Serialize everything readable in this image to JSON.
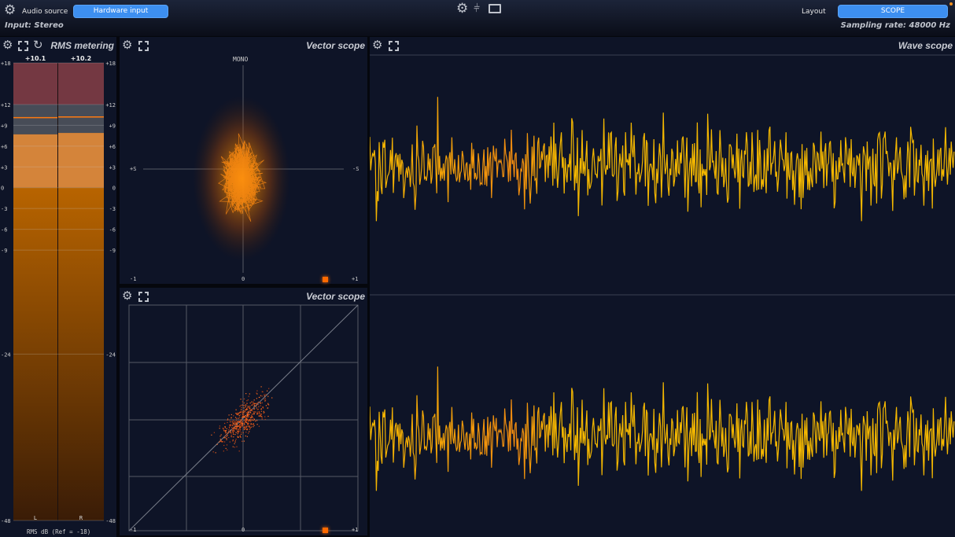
{
  "topbar": {
    "audio_source_label": "Audio source",
    "audio_source_value": "Hardware input",
    "input_info": "Input: Stereo",
    "layout_label": "Layout",
    "layout_value": "SCOPE",
    "sampling_rate": "Sampling rate: 48000 Hz",
    "center_icons": [
      "gear-icon",
      "mixer-sliders-icon",
      "scope-view-icon"
    ]
  },
  "rms": {
    "title": "RMS metering",
    "footer": "RMS dB (Ref = -18)",
    "scale": [
      "+18",
      "+12",
      "+9",
      "+6",
      "+3",
      "0",
      "-3",
      "-6",
      "-9",
      "-24",
      "-48"
    ],
    "channels": [
      {
        "label": "L",
        "peak_label": "+10.1",
        "peak_db": 10.1,
        "rms_db": 7.7
      },
      {
        "label": "R",
        "peak_label": "+10.2",
        "peak_db": 10.2,
        "rms_db": 7.9
      }
    ],
    "colors": {
      "over": "#743842",
      "warn": "#474c57",
      "hot": "#d4843a",
      "normal": "#b86400"
    }
  },
  "vector1": {
    "title": "Vector scope",
    "top_label": "MONO",
    "left_label": "+S",
    "right_label": "-S",
    "bottom_labels": [
      "-1",
      "0",
      "+1"
    ]
  },
  "vector2": {
    "title": "Vector scope",
    "bottom_labels": [
      "-1",
      "0",
      "+1"
    ]
  },
  "wave": {
    "title": "Wave scope",
    "color": "#f5b800"
  },
  "accent": "#3d8ff0"
}
